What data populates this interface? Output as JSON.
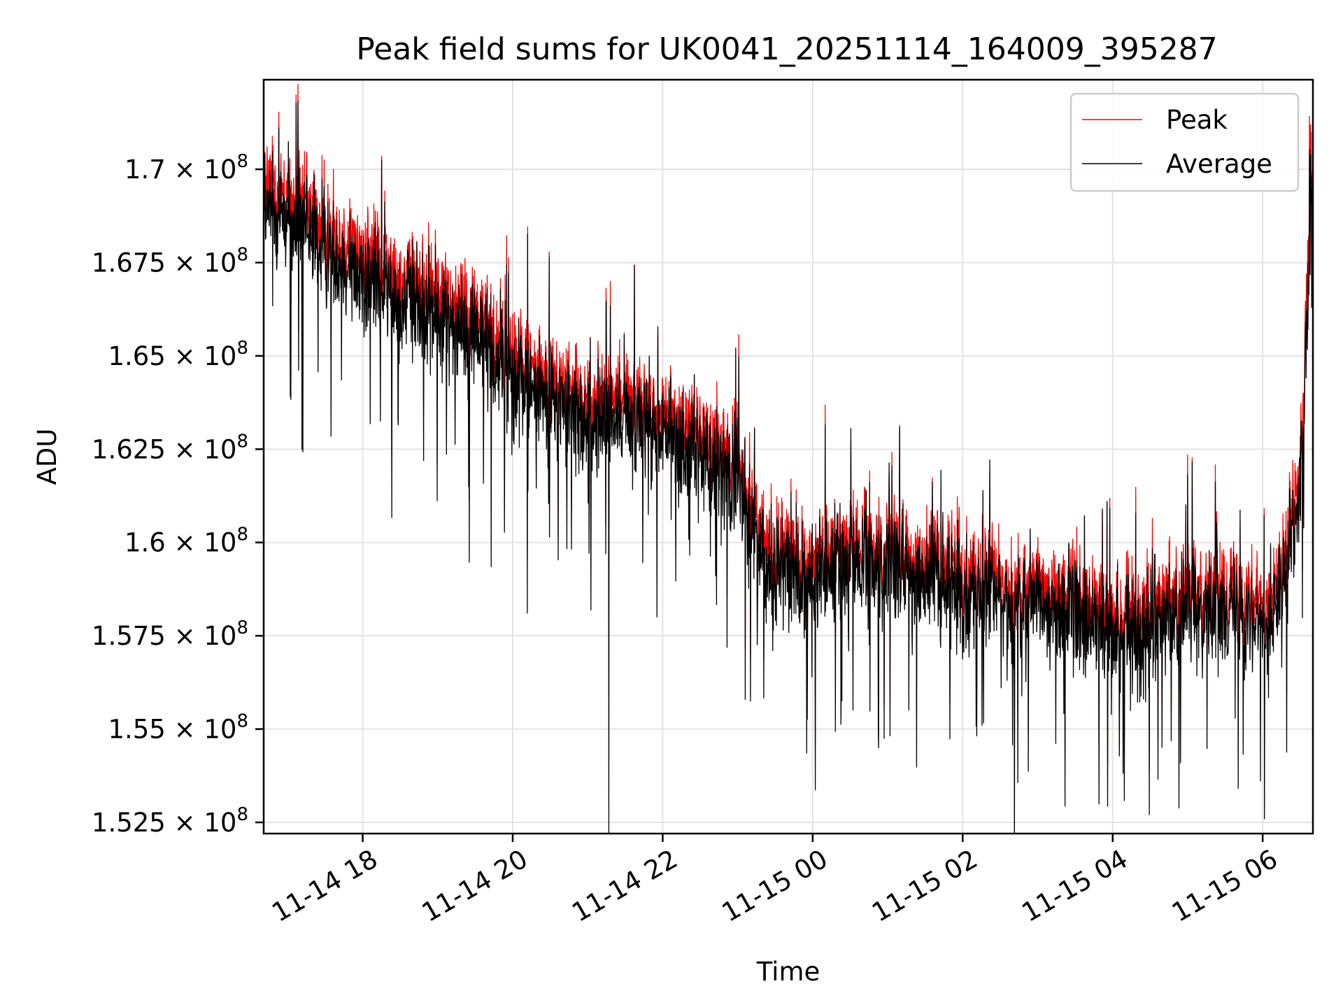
{
  "chart_data": {
    "type": "line",
    "title": "Peak field sums for UK0041_20251114_164009_395287",
    "xlabel": "Time",
    "ylabel": "ADU",
    "x_start_hours": 16.68,
    "x_end_hours": 30.67,
    "x_ticks": [
      {
        "hours": 18,
        "label": "11-14 18"
      },
      {
        "hours": 20,
        "label": "11-14 20"
      },
      {
        "hours": 22,
        "label": "11-14 22"
      },
      {
        "hours": 24,
        "label": "11-15 00"
      },
      {
        "hours": 26,
        "label": "11-15 02"
      },
      {
        "hours": 28,
        "label": "11-15 04"
      },
      {
        "hours": 30,
        "label": "11-15 06"
      }
    ],
    "ylim": [
      152200000,
      172400000
    ],
    "y_ticks": [
      {
        "value": 152500000,
        "mantissa": "1.525",
        "exp": "8"
      },
      {
        "value": 155000000,
        "mantissa": "1.55",
        "exp": "8"
      },
      {
        "value": 157500000,
        "mantissa": "1.575",
        "exp": "8"
      },
      {
        "value": 160000000,
        "mantissa": "1.6",
        "exp": "8"
      },
      {
        "value": 162500000,
        "mantissa": "1.625",
        "exp": "8"
      },
      {
        "value": 165000000,
        "mantissa": "1.65",
        "exp": "8"
      },
      {
        "value": 167500000,
        "mantissa": "1.675",
        "exp": "8"
      },
      {
        "value": 170000000,
        "mantissa": "1.7",
        "exp": "8"
      }
    ],
    "tick_mult": "×",
    "tick_base": "10",
    "grid": true,
    "legend_position": "top-right",
    "series": [
      {
        "name": "Peak",
        "color": "#ff0000",
        "points": 3400,
        "trend_hours": [
          16.68,
          17.0,
          17.5,
          18.0,
          18.5,
          19.0,
          19.5,
          20.0,
          20.5,
          21.0,
          21.3,
          21.7,
          22.0,
          22.5,
          23.0,
          23.3,
          23.6,
          24.0,
          24.5,
          25.0,
          25.5,
          26.0,
          26.5,
          27.0,
          27.5,
          28.0,
          28.5,
          29.0,
          29.5,
          30.0,
          30.3,
          30.5,
          30.67
        ],
        "trend_values": [
          169600000,
          169300000,
          168500000,
          167800000,
          167200000,
          166800000,
          166300000,
          165200000,
          164400000,
          163800000,
          163900000,
          163900000,
          163400000,
          163000000,
          162200000,
          160400000,
          159800000,
          159600000,
          160000000,
          159800000,
          159600000,
          159300000,
          159000000,
          158800000,
          158600000,
          158000000,
          158400000,
          158800000,
          158900000,
          158400000,
          159500000,
          162000000,
          170500000
        ],
        "noise_adu": 1400000
      },
      {
        "name": "Average",
        "color": "#000000",
        "points": 3400,
        "trend_hours": [
          16.68,
          17.0,
          17.5,
          18.0,
          18.5,
          19.0,
          19.5,
          20.0,
          20.5,
          21.0,
          21.3,
          21.7,
          22.0,
          22.5,
          23.0,
          23.3,
          23.6,
          24.0,
          24.5,
          25.0,
          25.5,
          26.0,
          26.5,
          27.0,
          27.5,
          28.0,
          28.5,
          29.0,
          29.5,
          30.0,
          30.3,
          30.5,
          30.67
        ],
        "trend_values": [
          168900000,
          168600000,
          167800000,
          167100000,
          166500000,
          166100000,
          165600000,
          164500000,
          163800000,
          163200000,
          163300000,
          163300000,
          162800000,
          162400000,
          161600000,
          159800000,
          159200000,
          159000000,
          159400000,
          159200000,
          159000000,
          158700000,
          158400000,
          158200000,
          158000000,
          157400000,
          157800000,
          158200000,
          158300000,
          157800000,
          158900000,
          161400000,
          169800000
        ],
        "noise_adu": 1600000,
        "dropout_hours": 21.28,
        "dropout_value": 152200000
      }
    ]
  }
}
